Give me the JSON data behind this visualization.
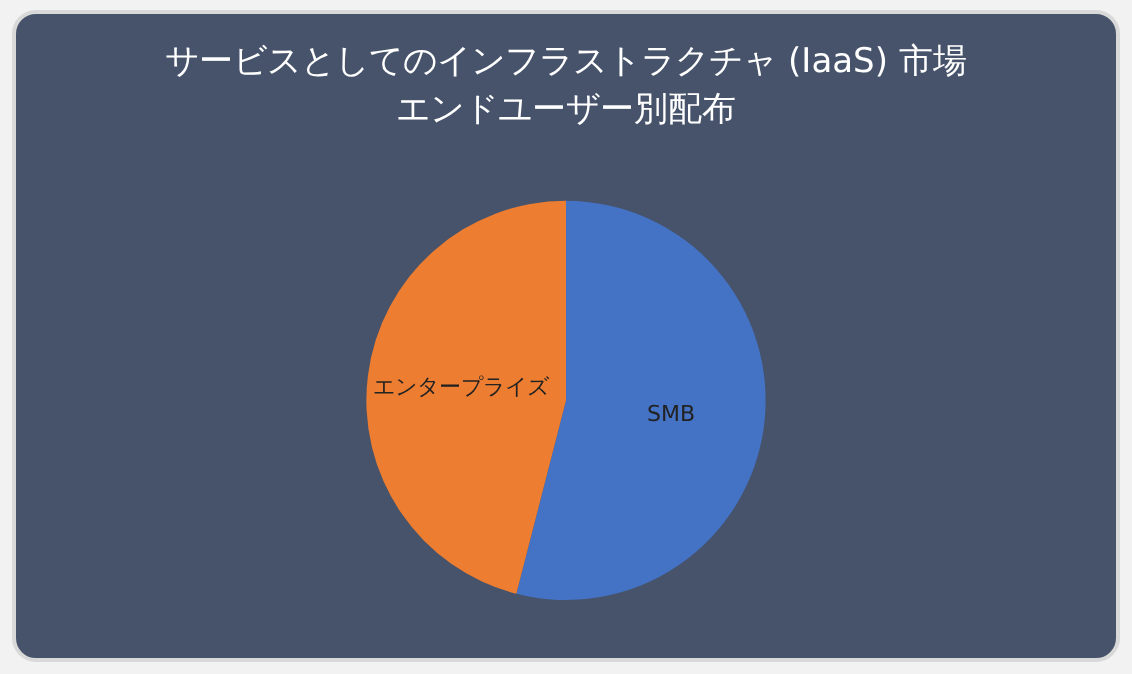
{
  "chart_data": {
    "type": "pie",
    "title": "サービスとしてのインフラストラクチャ (IaaS) 市場",
    "subtitle": "エンドユーザー別配布",
    "categories": [
      "SMB",
      "エンタープライズ"
    ],
    "values": [
      54,
      46
    ],
    "colors": [
      "#4472c4",
      "#ed7d31"
    ],
    "legend": false
  }
}
